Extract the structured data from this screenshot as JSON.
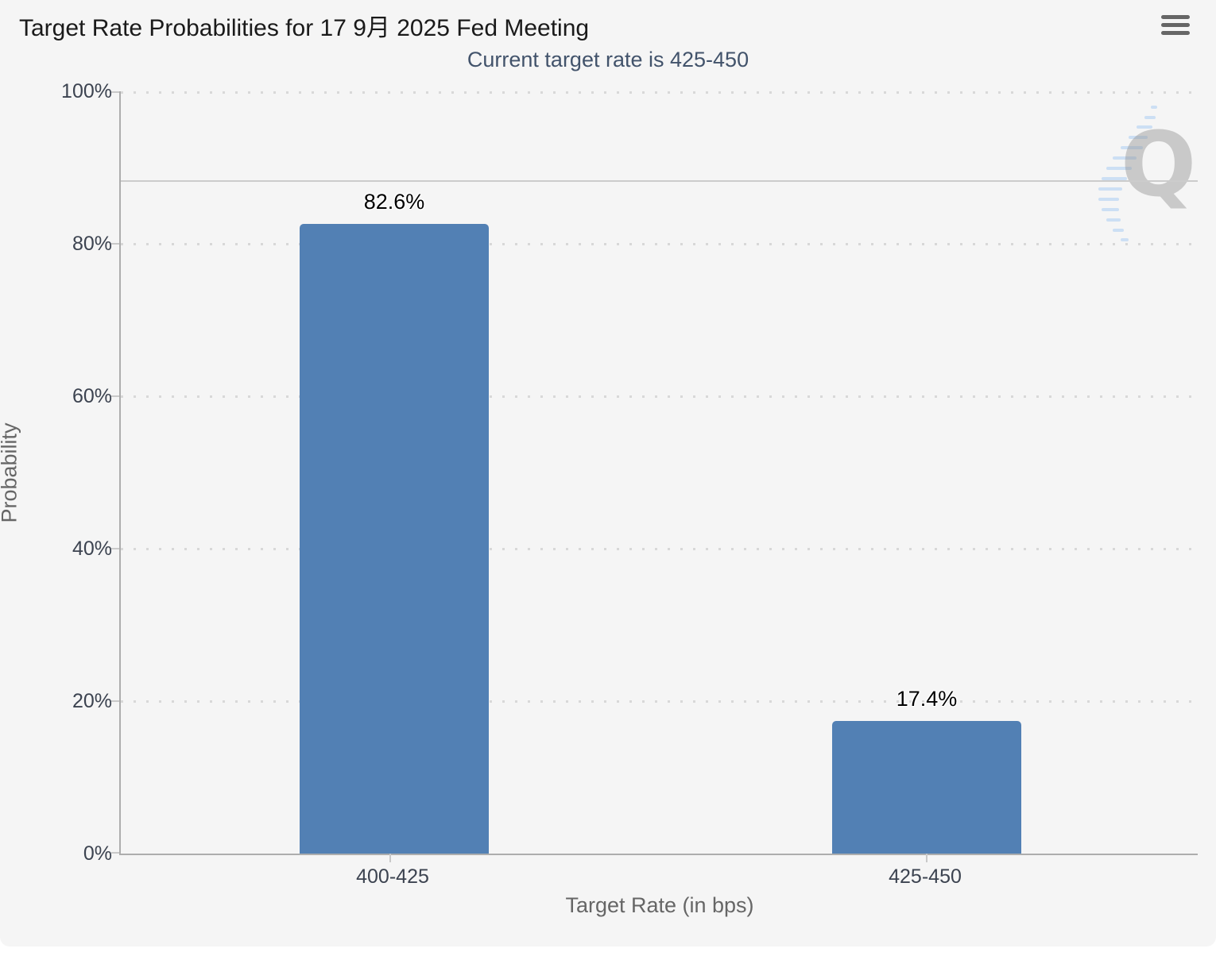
{
  "header": {
    "title": "Target Rate Probabilities for 17 9月 2025 Fed Meeting",
    "subtitle": "Current target rate is 425-450",
    "menu_icon": "hamburger-menu-icon"
  },
  "chart_data": {
    "type": "bar",
    "title": "Target Rate Probabilities for 17 9月 2025 Fed Meeting",
    "subtitle": "Current target rate is 425-450",
    "categories": [
      "400-425",
      "425-450"
    ],
    "values": [
      82.6,
      17.4
    ],
    "data_labels": [
      "82.6%",
      "17.4%"
    ],
    "xlabel": "Target Rate (in bps)",
    "ylabel": "Probability",
    "ylim": [
      0,
      100
    ],
    "ytick_interval": 20,
    "ytick_labels": [
      "0%",
      "20%",
      "40%",
      "60%",
      "80%",
      "100%"
    ],
    "grid": "dotted-horizontal",
    "legend_position": "none",
    "marker_line_value": 88.3,
    "bar_color": "#5280b4",
    "watermark_letter": "Q"
  },
  "colors": {
    "card_background": "#f5f5f5",
    "subtitle": "#42536b",
    "axis_line": "#adadad",
    "grid_dots": "#d8d8d8",
    "bar": "#5280b4",
    "axis_title": "#666666",
    "tick_label": "#3c4350"
  }
}
